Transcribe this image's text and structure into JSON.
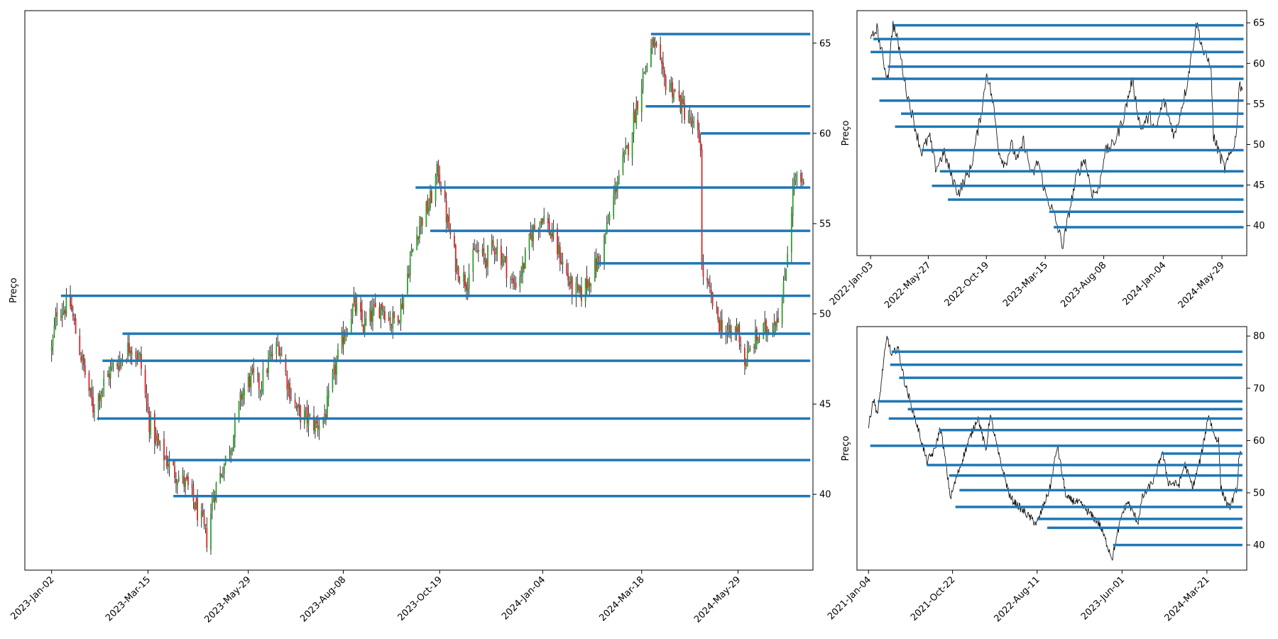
{
  "chart_data": [
    {
      "type": "candlestick",
      "id": "main",
      "ylabel": "Preço",
      "yticks": [
        40,
        45,
        50,
        55,
        60,
        65
      ],
      "ylim": [
        35.8,
        66.8
      ],
      "xlim": [
        "2022-12-13",
        "2024-07-24"
      ],
      "xticks": [
        "2023-Jan-02",
        "2023-Mar-15",
        "2023-May-29",
        "2023-Aug-08",
        "2023-Oct-19",
        "2024-Jan-04",
        "2024-Mar-18",
        "2024-May-29"
      ],
      "price_path": [
        [
          "2023-01-02",
          48.0
        ],
        [
          "2023-01-06",
          50.2
        ],
        [
          "2023-01-16",
          50.5
        ],
        [
          "2023-01-20",
          49.0
        ],
        [
          "2023-01-26",
          47.0
        ],
        [
          "2023-02-02",
          44.8
        ],
        [
          "2023-02-09",
          46.0
        ],
        [
          "2023-02-16",
          47.0
        ],
        [
          "2023-02-23",
          47.5
        ],
        [
          "2023-03-02",
          48.3
        ],
        [
          "2023-03-09",
          47.5
        ],
        [
          "2023-03-16",
          44.0
        ],
        [
          "2023-03-23",
          42.6
        ],
        [
          "2023-04-03",
          41.3
        ],
        [
          "2023-04-13",
          40.5
        ],
        [
          "2023-04-24",
          38.5
        ],
        [
          "2023-04-28",
          37.5
        ],
        [
          "2023-05-03",
          40.0
        ],
        [
          "2023-05-10",
          41.5
        ],
        [
          "2023-05-17",
          43.0
        ],
        [
          "2023-05-24",
          45.5
        ],
        [
          "2023-05-31",
          46.5
        ],
        [
          "2023-06-07",
          46.0
        ],
        [
          "2023-06-14",
          47.5
        ],
        [
          "2023-06-21",
          48.3
        ],
        [
          "2023-06-28",
          46.0
        ],
        [
          "2023-07-05",
          44.5
        ],
        [
          "2023-07-12",
          44.2
        ],
        [
          "2023-07-19",
          43.8
        ],
        [
          "2023-07-26",
          44.5
        ],
        [
          "2023-08-02",
          47.0
        ],
        [
          "2023-08-09",
          49.0
        ],
        [
          "2023-08-16",
          50.5
        ],
        [
          "2023-08-23",
          49.3
        ],
        [
          "2023-08-30",
          50.0
        ],
        [
          "2023-09-06",
          50.5
        ],
        [
          "2023-09-13",
          49.5
        ],
        [
          "2023-09-20",
          50.3
        ],
        [
          "2023-09-27",
          53.0
        ],
        [
          "2023-10-04",
          55.0
        ],
        [
          "2023-10-11",
          56.0
        ],
        [
          "2023-10-18",
          58.0
        ],
        [
          "2023-10-25",
          55.0
        ],
        [
          "2023-11-01",
          52.5
        ],
        [
          "2023-11-08",
          51.8
        ],
        [
          "2023-11-15",
          53.5
        ],
        [
          "2023-11-22",
          53.0
        ],
        [
          "2023-11-29",
          53.8
        ],
        [
          "2023-12-06",
          53.0
        ],
        [
          "2023-12-13",
          51.5
        ],
        [
          "2023-12-20",
          52.5
        ],
        [
          "2023-12-27",
          54.5
        ],
        [
          "2024-01-04",
          55.5
        ],
        [
          "2024-01-11",
          54.3
        ],
        [
          "2024-01-18",
          53.0
        ],
        [
          "2024-01-25",
          51.5
        ],
        [
          "2024-02-01",
          51.0
        ],
        [
          "2024-02-08",
          52.0
        ],
        [
          "2024-02-15",
          53.0
        ],
        [
          "2024-02-22",
          55.0
        ],
        [
          "2024-02-29",
          57.5
        ],
        [
          "2024-03-07",
          59.0
        ],
        [
          "2024-03-14",
          61.5
        ],
        [
          "2024-03-20",
          63.5
        ],
        [
          "2024-03-27",
          65.0
        ],
        [
          "2024-04-03",
          63.0
        ],
        [
          "2024-04-10",
          62.5
        ],
        [
          "2024-04-17",
          61.5
        ],
        [
          "2024-04-24",
          60.5
        ],
        [
          "2024-05-01",
          59.5
        ],
        [
          "2024-05-02",
          52.5
        ],
        [
          "2024-05-08",
          51.0
        ],
        [
          "2024-05-15",
          49.5
        ],
        [
          "2024-05-22",
          48.8
        ],
        [
          "2024-05-29",
          49.2
        ],
        [
          "2024-06-03",
          47.2
        ],
        [
          "2024-06-10",
          48.5
        ],
        [
          "2024-06-17",
          49.0
        ],
        [
          "2024-06-24",
          49.5
        ],
        [
          "2024-07-01",
          50.5
        ],
        [
          "2024-07-10",
          57.5
        ],
        [
          "2024-07-17",
          57.0
        ]
      ],
      "levels": [
        {
          "y": 65.5,
          "start": "2024-03-25"
        },
        {
          "y": 61.5,
          "start": "2024-03-21"
        },
        {
          "y": 60.0,
          "start": "2024-05-01"
        },
        {
          "y": 57.0,
          "start": "2023-10-01"
        },
        {
          "y": 54.6,
          "start": "2023-10-12"
        },
        {
          "y": 52.8,
          "start": "2024-02-13"
        },
        {
          "y": 51.0,
          "start": "2023-01-09"
        },
        {
          "y": 48.9,
          "start": "2023-02-24"
        },
        {
          "y": 47.4,
          "start": "2023-02-09"
        },
        {
          "y": 44.2,
          "start": "2023-02-05"
        },
        {
          "y": 41.9,
          "start": "2023-03-29"
        },
        {
          "y": 39.9,
          "start": "2023-04-03"
        }
      ],
      "level_end": "2024-07-22"
    },
    {
      "type": "line",
      "id": "topright",
      "ylabel": "Preço",
      "yticks": [
        40,
        45,
        50,
        55,
        60,
        65
      ],
      "ylim": [
        36.3,
        66.5
      ],
      "xlim": [
        "2021-11-30",
        "2024-07-30"
      ],
      "xticks": [
        "2022-Jan-03",
        "2022-May-27",
        "2022-Oct-19",
        "2023-Mar-15",
        "2023-Aug-08",
        "2024-Jan-04",
        "2024-May-29"
      ],
      "price_path": [
        [
          "2022-01-03",
          62.5
        ],
        [
          "2022-01-18",
          64.5
        ],
        [
          "2022-02-03",
          60.5
        ],
        [
          "2022-02-15",
          58.0
        ],
        [
          "2022-02-28",
          65.0
        ],
        [
          "2022-03-15",
          62.0
        ],
        [
          "2022-04-01",
          57.0
        ],
        [
          "2022-04-20",
          53.0
        ],
        [
          "2022-05-10",
          49.0
        ],
        [
          "2022-05-30",
          51.0
        ],
        [
          "2022-06-15",
          47.0
        ],
        [
          "2022-07-05",
          49.0
        ],
        [
          "2022-07-25",
          46.0
        ],
        [
          "2022-08-10",
          44.0
        ],
        [
          "2022-08-25",
          45.5
        ],
        [
          "2022-09-10",
          47.0
        ],
        [
          "2022-09-25",
          51.0
        ],
        [
          "2022-10-10",
          55.0
        ],
        [
          "2022-10-20",
          59.0
        ],
        [
          "2022-11-05",
          55.0
        ],
        [
          "2022-11-20",
          49.0
        ],
        [
          "2022-12-05",
          47.5
        ],
        [
          "2022-12-20",
          50.0
        ],
        [
          "2023-01-05",
          48.0
        ],
        [
          "2023-01-20",
          50.5
        ],
        [
          "2023-02-10",
          46.0
        ],
        [
          "2023-02-25",
          48.0
        ],
        [
          "2023-03-15",
          44.0
        ],
        [
          "2023-04-05",
          41.5
        ],
        [
          "2023-04-28",
          37.5
        ],
        [
          "2023-05-15",
          42.0
        ],
        [
          "2023-06-01",
          46.0
        ],
        [
          "2023-06-21",
          48.3
        ],
        [
          "2023-07-10",
          44.0
        ],
        [
          "2023-07-26",
          44.3
        ],
        [
          "2023-08-10",
          49.0
        ],
        [
          "2023-09-01",
          50.0
        ],
        [
          "2023-09-25",
          53.0
        ],
        [
          "2023-10-18",
          58.0
        ],
        [
          "2023-11-08",
          52.0
        ],
        [
          "2023-12-01",
          53.5
        ],
        [
          "2023-12-15",
          51.5
        ],
        [
          "2024-01-04",
          55.5
        ],
        [
          "2024-02-01",
          51.0
        ],
        [
          "2024-03-01",
          57.0
        ],
        [
          "2024-03-27",
          65.0
        ],
        [
          "2024-04-15",
          61.0
        ],
        [
          "2024-05-01",
          60.0
        ],
        [
          "2024-05-08",
          51.0
        ],
        [
          "2024-05-25",
          48.5
        ],
        [
          "2024-06-05",
          47.0
        ],
        [
          "2024-06-25",
          49.5
        ],
        [
          "2024-07-05",
          51.5
        ],
        [
          "2024-07-10",
          57.5
        ],
        [
          "2024-07-20",
          57.0
        ]
      ],
      "levels": [
        {
          "y": 64.7,
          "start": "2022-03-01"
        },
        {
          "y": 63.0,
          "start": "2022-01-10"
        },
        {
          "y": 61.4,
          "start": "2022-01-03"
        },
        {
          "y": 59.6,
          "start": "2022-02-15"
        },
        {
          "y": 58.1,
          "start": "2022-01-06"
        },
        {
          "y": 55.4,
          "start": "2022-01-25"
        },
        {
          "y": 53.8,
          "start": "2022-03-20"
        },
        {
          "y": 52.2,
          "start": "2022-03-05"
        },
        {
          "y": 49.3,
          "start": "2022-05-10"
        },
        {
          "y": 46.7,
          "start": "2022-06-25"
        },
        {
          "y": 44.9,
          "start": "2022-06-05"
        },
        {
          "y": 43.2,
          "start": "2022-07-15"
        },
        {
          "y": 41.7,
          "start": "2023-03-25"
        },
        {
          "y": 39.8,
          "start": "2023-04-05"
        }
      ],
      "level_end": "2024-07-22"
    },
    {
      "type": "line",
      "id": "bottomright",
      "ylabel": "Preço",
      "yticks": [
        40,
        50,
        60,
        70,
        80
      ],
      "ylim": [
        35.2,
        81.8
      ],
      "xlim": [
        "2020-11-25",
        "2024-08-06"
      ],
      "xticks": [
        "2021-Jan-04",
        "2021-Oct-22",
        "2022-Aug-11",
        "2023-Jun-01",
        "2024-Mar-21"
      ],
      "price_path": [
        [
          "2021-01-04",
          62.5
        ],
        [
          "2021-01-20",
          68.0
        ],
        [
          "2021-02-05",
          65.0
        ],
        [
          "2021-02-25",
          75.0
        ],
        [
          "2021-03-10",
          80.0
        ],
        [
          "2021-03-25",
          76.0
        ],
        [
          "2021-04-15",
          78.0
        ],
        [
          "2021-05-10",
          71.0
        ],
        [
          "2021-06-05",
          66.0
        ],
        [
          "2021-07-01",
          61.0
        ],
        [
          "2021-07-25",
          56.0
        ],
        [
          "2021-08-20",
          58.0
        ],
        [
          "2021-09-10",
          62.5
        ],
        [
          "2021-09-25",
          57.0
        ],
        [
          "2021-10-15",
          49.0
        ],
        [
          "2021-11-05",
          53.0
        ],
        [
          "2021-12-05",
          58.0
        ],
        [
          "2022-01-03",
          62.5
        ],
        [
          "2022-01-18",
          64.5
        ],
        [
          "2022-02-15",
          58.0
        ],
        [
          "2022-03-01",
          65.0
        ],
        [
          "2022-04-01",
          57.0
        ],
        [
          "2022-05-10",
          49.0
        ],
        [
          "2022-06-15",
          47.0
        ],
        [
          "2022-08-10",
          44.0
        ],
        [
          "2022-09-25",
          51.0
        ],
        [
          "2022-10-20",
          59.0
        ],
        [
          "2022-11-20",
          49.0
        ],
        [
          "2023-01-05",
          48.0
        ],
        [
          "2023-02-10",
          46.0
        ],
        [
          "2023-03-15",
          44.0
        ],
        [
          "2023-04-28",
          37.5
        ],
        [
          "2023-06-01",
          46.0
        ],
        [
          "2023-06-21",
          48.3
        ],
        [
          "2023-07-26",
          44.3
        ],
        [
          "2023-08-10",
          49.0
        ],
        [
          "2023-09-25",
          53.0
        ],
        [
          "2023-10-18",
          58.0
        ],
        [
          "2023-11-08",
          52.0
        ],
        [
          "2023-12-15",
          51.5
        ],
        [
          "2024-01-04",
          55.5
        ],
        [
          "2024-02-01",
          51.0
        ],
        [
          "2024-03-01",
          57.0
        ],
        [
          "2024-03-27",
          65.0
        ],
        [
          "2024-04-15",
          61.0
        ],
        [
          "2024-05-01",
          60.0
        ],
        [
          "2024-05-08",
          51.0
        ],
        [
          "2024-05-25",
          48.5
        ],
        [
          "2024-06-05",
          47.0
        ],
        [
          "2024-06-25",
          49.5
        ],
        [
          "2024-07-05",
          51.5
        ],
        [
          "2024-07-10",
          57.5
        ],
        [
          "2024-07-20",
          57.0
        ]
      ],
      "levels": [
        {
          "y": 77.0,
          "start": "2021-03-25"
        },
        {
          "y": 74.5,
          "start": "2021-03-20"
        },
        {
          "y": 72.0,
          "start": "2021-04-20"
        },
        {
          "y": 67.5,
          "start": "2021-02-05"
        },
        {
          "y": 66.0,
          "start": "2021-05-20"
        },
        {
          "y": 64.2,
          "start": "2021-03-15"
        },
        {
          "y": 62.0,
          "start": "2021-09-05"
        },
        {
          "y": 59.0,
          "start": "2021-01-10"
        },
        {
          "y": 57.5,
          "start": "2023-10-15"
        },
        {
          "y": 55.3,
          "start": "2021-07-25"
        },
        {
          "y": 53.3,
          "start": "2021-10-10"
        },
        {
          "y": 50.5,
          "start": "2021-11-15"
        },
        {
          "y": 47.3,
          "start": "2021-11-01"
        },
        {
          "y": 45.0,
          "start": "2022-08-10"
        },
        {
          "y": 43.3,
          "start": "2022-09-15"
        },
        {
          "y": 40.0,
          "start": "2023-05-01"
        }
      ],
      "level_end": "2024-07-22"
    }
  ],
  "colors": {
    "level": "#1f77b4",
    "price": "#000000",
    "up": "#2ca02c",
    "down": "#d62728"
  }
}
